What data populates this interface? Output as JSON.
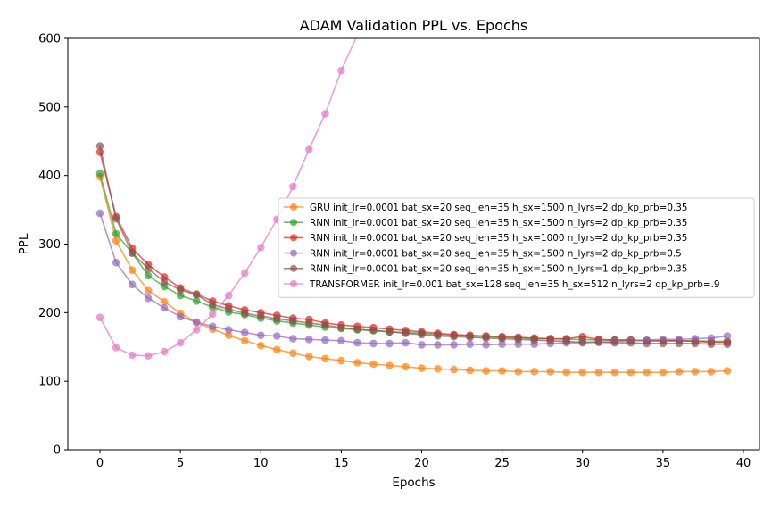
{
  "chart_data": {
    "type": "line",
    "title": "ADAM Validation PPL vs. Epochs",
    "xlabel": "Epochs",
    "ylabel": "PPL",
    "xlim": [
      -2,
      41
    ],
    "ylim": [
      0,
      600
    ],
    "xticks": [
      0,
      5,
      10,
      15,
      20,
      25,
      30,
      35,
      40
    ],
    "yticks": [
      0,
      100,
      200,
      300,
      400,
      500,
      600
    ],
    "grid": false,
    "legend_position": "center-right",
    "series": [
      {
        "name": "GRU init_lr=0.0001 bat_sx=20 seq_len=35 h_sx=1500 n_lyrs=2 dp_kp_prb=0.35",
        "color": "#ff7f0e",
        "x": [
          0,
          1,
          2,
          3,
          4,
          5,
          6,
          7,
          8,
          9,
          10,
          11,
          12,
          13,
          14,
          15,
          16,
          17,
          18,
          19,
          20,
          21,
          22,
          23,
          24,
          25,
          26,
          27,
          28,
          29,
          30,
          31,
          32,
          33,
          34,
          35,
          36,
          37,
          38,
          39
        ],
        "y": [
          398,
          305,
          262,
          232,
          216,
          199,
          186,
          176,
          167,
          159,
          152,
          146,
          141,
          136,
          133,
          130,
          127,
          125,
          123,
          121,
          119,
          118,
          117,
          116,
          115,
          115,
          114,
          114,
          114,
          113,
          113,
          113,
          113,
          113,
          113,
          113,
          114,
          114,
          114,
          115
        ]
      },
      {
        "name": "RNN init_lr=0.0001 bat_sx=20 seq_len=35 h_sx=1500 n_lyrs=2 dp_kp_prb=0.35",
        "color": "#2ca02c",
        "x": [
          0,
          1,
          2,
          3,
          4,
          5,
          6,
          7,
          8,
          9,
          10,
          11,
          12,
          13,
          14,
          15,
          16,
          17,
          18,
          19,
          20,
          21,
          22,
          23,
          24,
          25,
          26,
          27,
          28,
          29,
          30,
          31,
          32,
          33,
          34,
          35,
          36,
          37,
          38,
          39
        ],
        "y": [
          403,
          315,
          287,
          254,
          238,
          225,
          217,
          208,
          201,
          197,
          192,
          188,
          185,
          182,
          179,
          177,
          175,
          174,
          172,
          171,
          170,
          168,
          167,
          166,
          165,
          164,
          163,
          162,
          162,
          161,
          161,
          160,
          160,
          160,
          159,
          159,
          159,
          159,
          158,
          158
        ]
      },
      {
        "name": "RNN init_lr=0.0001 bat_sx=20 seq_len=35 h_sx=1000 n_lyrs=2 dp_kp_prb=0.35",
        "color": "#d62728",
        "x": [
          0,
          1,
          2,
          3,
          4,
          5,
          6,
          7,
          8,
          9,
          10,
          11,
          12,
          13,
          14,
          15,
          16,
          17,
          18,
          19,
          20,
          21,
          22,
          23,
          24,
          25,
          26,
          27,
          28,
          29,
          30,
          31,
          32,
          33,
          34,
          35,
          36,
          37,
          38,
          39
        ],
        "y": [
          434,
          340,
          294,
          270,
          252,
          236,
          227,
          217,
          210,
          204,
          200,
          196,
          192,
          190,
          185,
          182,
          180,
          178,
          176,
          174,
          172,
          170,
          168,
          167,
          166,
          165,
          164,
          163,
          162,
          162,
          165,
          161,
          160,
          160,
          159,
          159,
          159,
          158,
          157,
          157
        ]
      },
      {
        "name": "RNN init_lr=0.0001 bat_sx=20 seq_len=35 h_sx=1500 n_lyrs=2 dp_kp_prb=0.5",
        "color": "#9467bd",
        "x": [
          0,
          1,
          2,
          3,
          4,
          5,
          6,
          7,
          8,
          9,
          10,
          11,
          12,
          13,
          14,
          15,
          16,
          17,
          18,
          19,
          20,
          21,
          22,
          23,
          24,
          25,
          26,
          27,
          28,
          29,
          30,
          31,
          32,
          33,
          34,
          35,
          36,
          37,
          38,
          39
        ],
        "y": [
          345,
          273,
          241,
          221,
          207,
          194,
          186,
          180,
          175,
          171,
          167,
          166,
          162,
          161,
          160,
          159,
          156,
          155,
          155,
          156,
          153,
          153,
          153,
          154,
          153,
          154,
          154,
          154,
          155,
          156,
          156,
          157,
          158,
          159,
          160,
          161,
          161,
          162,
          163,
          166
        ]
      },
      {
        "name": "RNN init_lr=0.0001 bat_sx=20 seq_len=35 h_sx=1500 n_lyrs=1 dp_kp_prb=0.35",
        "color": "#8c564b",
        "x": [
          0,
          1,
          2,
          3,
          4,
          5,
          6,
          7,
          8,
          9,
          10,
          11,
          12,
          13,
          14,
          15,
          16,
          17,
          18,
          19,
          20,
          21,
          22,
          23,
          24,
          25,
          26,
          27,
          28,
          29,
          30,
          31,
          32,
          33,
          34,
          35,
          36,
          37,
          38,
          39
        ],
        "y": [
          443,
          337,
          287,
          264,
          245,
          233,
          226,
          212,
          205,
          199,
          195,
          191,
          188,
          185,
          182,
          178,
          176,
          174,
          172,
          170,
          168,
          166,
          165,
          164,
          163,
          162,
          161,
          160,
          159,
          158,
          157,
          157,
          156,
          156,
          155,
          155,
          155,
          155,
          154,
          154
        ]
      },
      {
        "name": "TRANSFORMER init_lr=0.001 bat_sx=128 seq_len=35 h_sx=512 n_lyrs=2 dp_kp_prb=.9",
        "color": "#e377c2",
        "x": [
          0,
          1,
          2,
          3,
          4,
          5,
          6,
          7,
          8,
          9,
          10,
          11,
          12,
          13,
          14,
          15,
          16
        ],
        "y": [
          193,
          149,
          138,
          137,
          143,
          156,
          175,
          198,
          225,
          258,
          295,
          336,
          384,
          438,
          490,
          553,
          605
        ]
      }
    ]
  }
}
